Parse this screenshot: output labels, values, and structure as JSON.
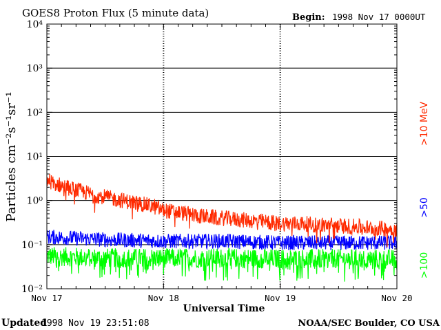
{
  "header": {
    "title": "GOES8 Proton Flux (5 minute data)",
    "begin_label": "Begin:",
    "begin_value": "1998 Nov 17 0000UT"
  },
  "footer": {
    "updated_label": "Updated",
    "updated_value": "1998 Nov 19 23:51:08",
    "credit": "NOAA/SEC Boulder, CO USA"
  },
  "chart_data": {
    "type": "line",
    "title": "GOES8 Proton Flux (5 minute data)",
    "xlabel": "Universal Time",
    "ylabel": "Particles cm⁻²s⁻¹sr⁻¹",
    "yscale": "log",
    "ylim": [
      0.01,
      10000
    ],
    "ytick_labels": [
      "10⁻²",
      "10⁻¹",
      "10⁰",
      "10¹",
      "10²",
      "10³",
      "10⁴"
    ],
    "x_ticks": [
      "Nov 17",
      "Nov 18",
      "Nov 19",
      "Nov 20"
    ],
    "xlim_days": [
      17,
      20
    ],
    "grid": true,
    "legend_position": "right",
    "colors": {
      ">10 MeV": "#ff2a00",
      ">50": "#0000ff",
      ">100": "#00ff00"
    },
    "series": [
      {
        "name": ">10 MeV",
        "color": "#ff2a00",
        "x": [
          17.0,
          17.1,
          17.2,
          17.3,
          17.4,
          17.5,
          17.6,
          17.7,
          17.8,
          17.9,
          18.0,
          18.1,
          18.2,
          18.3,
          18.4,
          18.5,
          18.6,
          18.7,
          18.8,
          18.9,
          19.0,
          19.1,
          19.2,
          19.3,
          19.4,
          19.5,
          19.6,
          19.7,
          19.8,
          19.9,
          20.0
        ],
        "values": [
          2.9,
          2.3,
          1.9,
          1.6,
          1.35,
          1.2,
          1.05,
          0.95,
          0.85,
          0.75,
          0.6,
          0.55,
          0.5,
          0.45,
          0.42,
          0.4,
          0.38,
          0.36,
          0.34,
          0.32,
          0.3,
          0.3,
          0.3,
          0.28,
          0.28,
          0.27,
          0.26,
          0.25,
          0.24,
          0.23,
          0.22
        ]
      },
      {
        "name": ">50",
        "color": "#0000ff",
        "x": [
          17.0,
          17.5,
          18.0,
          18.5,
          19.0,
          19.5,
          20.0
        ],
        "values": [
          0.15,
          0.13,
          0.12,
          0.12,
          0.11,
          0.11,
          0.11
        ]
      },
      {
        "name": ">100",
        "color": "#00ff00",
        "x": [
          17.0,
          17.5,
          18.0,
          18.5,
          19.0,
          19.5,
          20.0
        ],
        "values": [
          0.055,
          0.05,
          0.05,
          0.05,
          0.048,
          0.048,
          0.047
        ]
      }
    ]
  }
}
